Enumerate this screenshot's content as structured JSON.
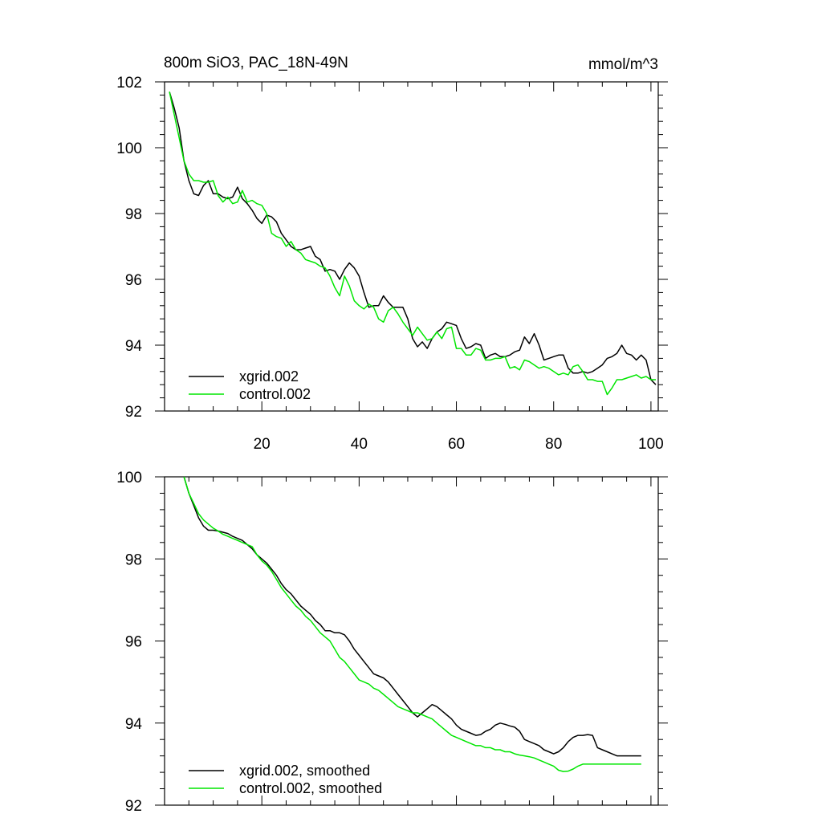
{
  "chart_data": [
    {
      "type": "line",
      "title": "800m SiO3, PAC_18N-49N",
      "units": "mmol/m^3",
      "xlim": [
        0,
        101.5
      ],
      "ylim": [
        92,
        102
      ],
      "xticks": [
        20,
        40,
        60,
        80,
        100
      ],
      "xtick_labels": [
        "20",
        "40",
        "60",
        "80",
        "100"
      ],
      "yticks": [
        92,
        94,
        96,
        98,
        100,
        102
      ],
      "ytick_labels": [
        "92",
        "94",
        "96",
        "98",
        "100",
        "102"
      ],
      "legend_position": "bottom-left",
      "series": [
        {
          "name": "xgrid.002",
          "color": "#000000",
          "x": [
            1,
            2,
            3,
            4,
            5,
            6,
            7,
            8,
            9,
            10,
            11,
            12,
            13,
            14,
            15,
            16,
            17,
            18,
            19,
            20,
            21,
            22,
            23,
            24,
            25,
            26,
            27,
            28,
            29,
            30,
            31,
            32,
            33,
            34,
            35,
            36,
            37,
            38,
            39,
            40,
            41,
            42,
            43,
            44,
            45,
            46,
            47,
            48,
            49,
            50,
            51,
            52,
            53,
            54,
            55,
            56,
            57,
            58,
            59,
            60,
            61,
            62,
            63,
            64,
            65,
            66,
            67,
            68,
            69,
            70,
            71,
            72,
            73,
            74,
            75,
            76,
            77,
            78,
            79,
            80,
            81,
            82,
            83,
            84,
            85,
            86,
            87,
            88,
            89,
            90,
            91,
            92,
            93,
            94,
            95,
            96,
            97,
            98,
            99,
            100,
            101
          ],
          "values": [
            101.7,
            101.2,
            100.6,
            99.6,
            99.0,
            98.6,
            98.55,
            98.85,
            99.0,
            98.6,
            98.6,
            98.5,
            98.45,
            98.5,
            98.8,
            98.45,
            98.3,
            98.1,
            97.85,
            97.7,
            97.95,
            97.9,
            97.75,
            97.4,
            97.2,
            97.0,
            96.9,
            96.9,
            96.95,
            97.0,
            96.7,
            96.6,
            96.25,
            96.3,
            96.25,
            96.0,
            96.3,
            96.5,
            96.35,
            96.1,
            95.6,
            95.15,
            95.2,
            95.2,
            95.5,
            95.3,
            95.15,
            95.15,
            95.15,
            94.8,
            94.2,
            93.95,
            94.1,
            93.9,
            94.2,
            94.4,
            94.5,
            94.7,
            94.65,
            94.6,
            94.2,
            93.9,
            93.95,
            94.05,
            94.0,
            93.6,
            93.7,
            93.75,
            93.65,
            93.65,
            93.7,
            93.8,
            93.85,
            94.25,
            94.05,
            94.35,
            94.0,
            93.55,
            93.6,
            93.65,
            93.7,
            93.7,
            93.3,
            93.15,
            93.15,
            93.2,
            93.15,
            93.2,
            93.3,
            93.4,
            93.6,
            93.65,
            93.75,
            94.0,
            93.75,
            93.7,
            93.55,
            93.7,
            93.55,
            92.95,
            92.8
          ]
        },
        {
          "name": "control.002",
          "color": "#00e600",
          "x": [
            1,
            2,
            3,
            4,
            5,
            6,
            7,
            8,
            9,
            10,
            11,
            12,
            13,
            14,
            15,
            16,
            17,
            18,
            19,
            20,
            21,
            22,
            23,
            24,
            25,
            26,
            27,
            28,
            29,
            30,
            31,
            32,
            33,
            34,
            35,
            36,
            37,
            38,
            39,
            40,
            41,
            42,
            43,
            44,
            45,
            46,
            47,
            48,
            49,
            50,
            51,
            52,
            53,
            54,
            55,
            56,
            57,
            58,
            59,
            60,
            61,
            62,
            63,
            64,
            65,
            66,
            67,
            68,
            69,
            70,
            71,
            72,
            73,
            74,
            75,
            76,
            77,
            78,
            79,
            80,
            81,
            82,
            83,
            84,
            85,
            86,
            87,
            88,
            89,
            90,
            91,
            92,
            93,
            94,
            95,
            96,
            97,
            98,
            99,
            100,
            101
          ],
          "values": [
            101.7,
            101.0,
            100.3,
            99.6,
            99.2,
            99.0,
            99.0,
            98.95,
            98.95,
            99.0,
            98.55,
            98.35,
            98.5,
            98.3,
            98.35,
            98.7,
            98.35,
            98.4,
            98.3,
            98.25,
            98.0,
            97.4,
            97.3,
            97.25,
            97.0,
            97.15,
            96.9,
            96.8,
            96.6,
            96.55,
            96.5,
            96.4,
            96.35,
            96.1,
            95.75,
            95.5,
            96.1,
            95.8,
            95.35,
            95.2,
            95.1,
            95.25,
            95.15,
            94.8,
            94.7,
            95.05,
            95.15,
            94.95,
            94.7,
            94.5,
            94.3,
            94.55,
            94.35,
            94.15,
            94.2,
            94.4,
            94.2,
            94.5,
            94.55,
            93.9,
            93.9,
            93.7,
            93.7,
            93.9,
            93.85,
            93.55,
            93.55,
            93.6,
            93.6,
            93.65,
            93.3,
            93.35,
            93.25,
            93.55,
            93.5,
            93.4,
            93.3,
            93.35,
            93.3,
            93.2,
            93.1,
            93.15,
            93.1,
            93.35,
            93.4,
            93.2,
            92.95,
            92.95,
            92.9,
            92.9,
            92.5,
            92.7,
            92.95,
            92.95,
            93.0,
            93.05,
            93.1,
            93.0,
            93.05,
            92.95,
            92.95
          ]
        }
      ]
    },
    {
      "type": "line",
      "title": "",
      "xlim": [
        0,
        101.5
      ],
      "ylim": [
        92,
        100
      ],
      "xticks": [
        20,
        40,
        60,
        80,
        100
      ],
      "yticks": [
        92,
        94,
        96,
        98,
        100
      ],
      "ytick_labels": [
        "92",
        "94",
        "96",
        "98",
        "100"
      ],
      "legend_position": "bottom-left",
      "series": [
        {
          "name": "xgrid.002, smoothed",
          "color": "#000000",
          "x": [
            4,
            5,
            6,
            7,
            8,
            9,
            10,
            11,
            12,
            13,
            14,
            15,
            16,
            17,
            18,
            19,
            20,
            21,
            22,
            23,
            24,
            25,
            26,
            27,
            28,
            29,
            30,
            31,
            32,
            33,
            34,
            35,
            36,
            37,
            38,
            39,
            40,
            41,
            42,
            43,
            44,
            45,
            46,
            47,
            48,
            49,
            50,
            51,
            52,
            53,
            54,
            55,
            56,
            57,
            58,
            59,
            60,
            61,
            62,
            63,
            64,
            65,
            66,
            67,
            68,
            69,
            70,
            71,
            72,
            73,
            74,
            75,
            76,
            77,
            78,
            79,
            80,
            81,
            82,
            83,
            84,
            85,
            86,
            87,
            88,
            89,
            90,
            91,
            92,
            93,
            94,
            95,
            96,
            97,
            98
          ],
          "values": [
            100.0,
            99.6,
            99.3,
            99.0,
            98.8,
            98.7,
            98.7,
            98.68,
            98.65,
            98.62,
            98.55,
            98.5,
            98.45,
            98.35,
            98.25,
            98.1,
            98.0,
            97.9,
            97.75,
            97.6,
            97.4,
            97.25,
            97.15,
            97.0,
            96.85,
            96.75,
            96.65,
            96.5,
            96.4,
            96.25,
            96.25,
            96.2,
            96.2,
            96.15,
            96.0,
            95.8,
            95.65,
            95.5,
            95.35,
            95.2,
            95.15,
            95.1,
            95.0,
            94.85,
            94.7,
            94.55,
            94.4,
            94.25,
            94.15,
            94.25,
            94.35,
            94.45,
            94.4,
            94.3,
            94.2,
            94.1,
            93.95,
            93.85,
            93.8,
            93.75,
            93.7,
            93.72,
            93.8,
            93.85,
            93.95,
            94.0,
            93.97,
            93.93,
            93.9,
            93.8,
            93.6,
            93.55,
            93.5,
            93.45,
            93.35,
            93.3,
            93.25,
            93.3,
            93.4,
            93.55,
            93.65,
            93.7,
            93.7,
            93.72,
            93.7,
            93.4,
            93.35,
            93.3,
            93.25,
            93.2,
            93.2,
            93.2,
            93.2,
            93.2,
            93.2
          ],
          "values_fix": true
        },
        {
          "name": "control.002, smoothed",
          "color": "#00e600",
          "x": [
            4,
            5,
            6,
            7,
            8,
            9,
            10,
            11,
            12,
            13,
            14,
            15,
            16,
            17,
            18,
            19,
            20,
            21,
            22,
            23,
            24,
            25,
            26,
            27,
            28,
            29,
            30,
            31,
            32,
            33,
            34,
            35,
            36,
            37,
            38,
            39,
            40,
            41,
            42,
            43,
            44,
            45,
            46,
            47,
            48,
            49,
            50,
            51,
            52,
            53,
            54,
            55,
            56,
            57,
            58,
            59,
            60,
            61,
            62,
            63,
            64,
            65,
            66,
            67,
            68,
            69,
            70,
            71,
            72,
            73,
            74,
            75,
            76,
            77,
            78,
            79,
            80,
            81,
            82,
            83,
            84,
            85,
            86,
            87,
            88,
            89,
            90,
            91,
            92,
            93,
            94,
            95,
            96,
            97,
            98
          ],
          "values": [
            100.0,
            99.6,
            99.35,
            99.1,
            98.95,
            98.85,
            98.75,
            98.68,
            98.6,
            98.55,
            98.5,
            98.45,
            98.4,
            98.35,
            98.3,
            98.1,
            97.95,
            97.85,
            97.7,
            97.5,
            97.3,
            97.15,
            97.0,
            96.85,
            96.75,
            96.6,
            96.5,
            96.35,
            96.2,
            96.1,
            96.0,
            95.8,
            95.6,
            95.5,
            95.35,
            95.2,
            95.05,
            95.0,
            94.95,
            94.85,
            94.8,
            94.7,
            94.6,
            94.5,
            94.4,
            94.35,
            94.3,
            94.25,
            94.25,
            94.2,
            94.15,
            94.1,
            94.0,
            93.9,
            93.8,
            93.7,
            93.65,
            93.6,
            93.55,
            93.5,
            93.45,
            93.45,
            93.4,
            93.4,
            93.35,
            93.35,
            93.3,
            93.3,
            93.25,
            93.22,
            93.2,
            93.18,
            93.15,
            93.1,
            93.05,
            93.0,
            92.95,
            92.85,
            92.82,
            92.83,
            92.88,
            92.95,
            93.0,
            93.0,
            93.0,
            93.0,
            93.0,
            93.0,
            93.0,
            93.0,
            93.0,
            93.0,
            93.0,
            93.0,
            93.0
          ]
        }
      ]
    }
  ]
}
